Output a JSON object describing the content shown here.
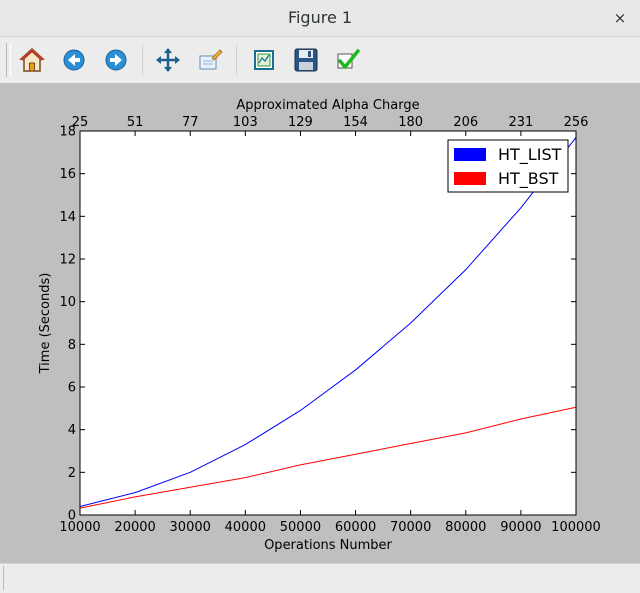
{
  "window": {
    "title": "Figure 1",
    "close_label": "×"
  },
  "toolbar": {
    "buttons": [
      {
        "name": "home-button",
        "icon": "home-icon"
      },
      {
        "name": "back-button",
        "icon": "back-arrow-icon"
      },
      {
        "name": "forward-button",
        "icon": "forward-arrow-icon"
      },
      {
        "name": "pan-button",
        "icon": "move-icon"
      },
      {
        "name": "zoom-button",
        "icon": "zoom-rect-icon"
      },
      {
        "name": "subplots-button",
        "icon": "subplots-icon"
      },
      {
        "name": "save-button",
        "icon": "floppy-disk-icon"
      },
      {
        "name": "edit-axis-button",
        "icon": "checkmark-icon"
      }
    ]
  },
  "chart_data": {
    "type": "line",
    "xlabel": "Operations Number",
    "ylabel": "Time (Seconds)",
    "x2label": "Approximated Alpha Charge",
    "xlim": [
      10000,
      100000
    ],
    "ylim": [
      0,
      18
    ],
    "xticks": [
      10000,
      20000,
      30000,
      40000,
      50000,
      60000,
      70000,
      80000,
      90000,
      100000
    ],
    "yticks": [
      0,
      2,
      4,
      6,
      8,
      10,
      12,
      14,
      16,
      18
    ],
    "x2ticks": [
      "25",
      "51",
      "77",
      "103",
      "129",
      "154",
      "180",
      "206",
      "231",
      "256"
    ],
    "grid": false,
    "legend_position": "top-right",
    "x": [
      10000,
      20000,
      30000,
      40000,
      50000,
      60000,
      70000,
      80000,
      90000,
      100000
    ],
    "series": [
      {
        "name": "HT_LIST",
        "color": "#0000ff",
        "values": [
          0.4,
          1.05,
          2.0,
          3.3,
          4.9,
          6.8,
          9.0,
          11.5,
          14.4,
          17.7
        ]
      },
      {
        "name": "HT_BST",
        "color": "#ff0000",
        "values": [
          0.32,
          0.85,
          1.3,
          1.75,
          2.35,
          2.85,
          3.35,
          3.85,
          4.5,
          5.05
        ]
      }
    ]
  }
}
